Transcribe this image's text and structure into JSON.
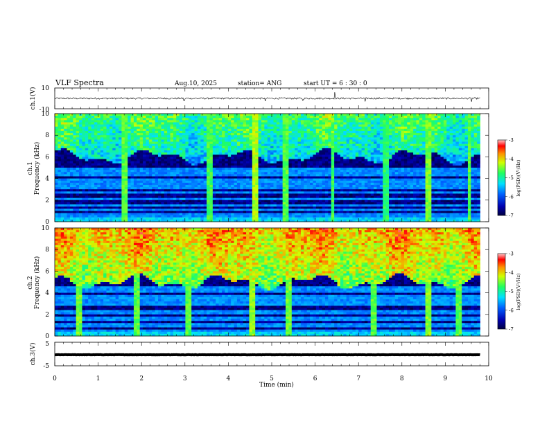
{
  "header": {
    "title": "VLF Spectra",
    "date": "Aug.10, 2025",
    "station": "station= ANG",
    "start": "start  UT =   6  : 30 : 0"
  },
  "colors": {
    "spec_low": "#000040",
    "spec_mid": "#00e0ff",
    "spec_high": "#ff0000",
    "trace": "#000000"
  },
  "chart_data": [
    {
      "id": "ch1-waveform",
      "type": "line",
      "ylabel": "ch.1(V)",
      "ylim": [
        -10,
        10
      ],
      "yticks": [
        "10",
        "-10"
      ],
      "xlim": [
        0,
        10
      ],
      "baseline": 0,
      "noise": 0.8,
      "spikes": [
        {
          "t": 2.98,
          "v": -2.2
        },
        {
          "t": 4.85,
          "v": -2.6
        },
        {
          "t": 5.72,
          "v": -2.1
        },
        {
          "t": 6.45,
          "v": 6.0
        },
        {
          "t": 7.15,
          "v": -3.0
        },
        {
          "t": 9.6,
          "v": -3.2
        }
      ],
      "data_end": 9.8
    },
    {
      "id": "ch1-spectrogram",
      "type": "heatmap",
      "name": "ch.1",
      "ylabel": "Frequency (kHz)",
      "ylim": [
        0,
        10
      ],
      "yticks": [
        "0",
        "2",
        "4",
        "6",
        "8",
        "10"
      ],
      "xlim": [
        0,
        10
      ],
      "data_end": 9.8,
      "color_label": "log(PSD)(V²/Hz)",
      "color_range": [
        -7,
        -3
      ],
      "color_ticks": [
        "-3",
        "-4",
        "-5",
        "-6",
        "-7"
      ],
      "noise_floor_kHz": 6.0,
      "upper_band_level": -5.2,
      "bright_stripes": [
        {
          "t": 1.62,
          "level": -4.6
        },
        {
          "t": 3.55,
          "level": -4.7
        },
        {
          "t": 4.6,
          "level": -4.3
        },
        {
          "t": 5.3,
          "level": -4.6
        },
        {
          "t": 6.4,
          "level": -4.7
        },
        {
          "t": 7.62,
          "level": -4.8
        },
        {
          "t": 8.6,
          "level": -4.5
        },
        {
          "t": 9.55,
          "level": -4.6
        }
      ],
      "lines_kHz": [
        0.3,
        0.6,
        1.1,
        1.5,
        2.1,
        2.7,
        3.2,
        3.5,
        3.8,
        4.4,
        4.7,
        4.9
      ]
    },
    {
      "id": "ch2-spectrogram",
      "type": "heatmap",
      "name": "ch.2",
      "ylabel": "Frequency (kHz)",
      "ylim": [
        0,
        10
      ],
      "yticks": [
        "0",
        "2",
        "4",
        "6",
        "8",
        "10"
      ],
      "xlim": [
        0,
        10
      ],
      "data_end": 9.8,
      "color_label": "log(PSD)(V²/Hz)",
      "color_range": [
        -7,
        -3
      ],
      "color_ticks": [
        "-3",
        "-4",
        "-5",
        "-6",
        "-7"
      ],
      "noise_floor_kHz": 5.0,
      "upper_band_level": -4.4,
      "bright_stripes": [
        {
          "t": 0.55,
          "level": -4.5
        },
        {
          "t": 1.9,
          "level": -4.6
        },
        {
          "t": 3.1,
          "level": -4.6
        },
        {
          "t": 4.55,
          "level": -4.4
        },
        {
          "t": 5.4,
          "level": -4.5
        },
        {
          "t": 7.35,
          "level": -4.6
        },
        {
          "t": 8.6,
          "level": -4.4
        },
        {
          "t": 9.3,
          "level": -4.6
        }
      ],
      "lines_kHz": [
        0.5,
        1.0,
        1.6,
        2.2,
        2.9,
        3.0,
        3.4,
        3.6,
        4.1,
        4.4
      ]
    },
    {
      "id": "ch3-waveform",
      "type": "line",
      "ylabel": "ch.3(V)",
      "ylim": [
        -5,
        5
      ],
      "yticks": [
        "5",
        "-5"
      ],
      "xlim": [
        0,
        10
      ],
      "baseline": -0.3,
      "noise": 0.05,
      "spikes": [],
      "data_end": 9.8
    }
  ],
  "x_axis": {
    "label": "Time (min)",
    "ticks": [
      "0",
      "1",
      "2",
      "3",
      "4",
      "5",
      "6",
      "7",
      "8",
      "9",
      "10"
    ]
  }
}
